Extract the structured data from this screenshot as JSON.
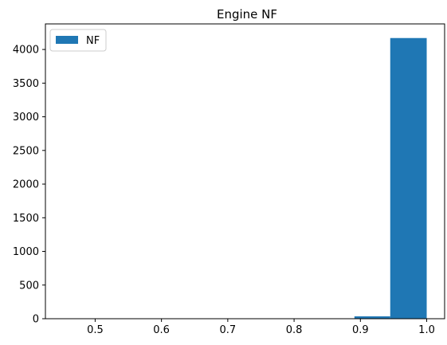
{
  "chart_data": {
    "type": "histogram",
    "title": "Engine NF",
    "xlabel": "",
    "ylabel": "",
    "xlim": [
      0.425,
      1.027
    ],
    "ylim": [
      0,
      4380
    ],
    "xticks": [
      0.5,
      0.6,
      0.7,
      0.8,
      0.9,
      1.0
    ],
    "xtick_labels": [
      "0.5",
      "0.6",
      "0.7",
      "0.8",
      "0.9",
      "1.0"
    ],
    "yticks": [
      0,
      500,
      1000,
      1500,
      2000,
      2500,
      3000,
      3500,
      4000
    ],
    "ytick_labels": [
      "0",
      "500",
      "1000",
      "1500",
      "2000",
      "2500",
      "3000",
      "3500",
      "4000"
    ],
    "grid": false,
    "legend": {
      "position": "upper-left",
      "entries": [
        "NF"
      ]
    },
    "color": "#1f77b4",
    "series": [
      {
        "name": "NF",
        "bins": [
          {
            "x0": 0.453,
            "x1": 0.508,
            "count": 1
          },
          {
            "x0": 0.508,
            "x1": 0.563,
            "count": 0
          },
          {
            "x0": 0.563,
            "x1": 0.617,
            "count": 0
          },
          {
            "x0": 0.617,
            "x1": 0.672,
            "count": 0
          },
          {
            "x0": 0.672,
            "x1": 0.727,
            "count": 0
          },
          {
            "x0": 0.727,
            "x1": 0.781,
            "count": 0
          },
          {
            "x0": 0.781,
            "x1": 0.836,
            "count": 0
          },
          {
            "x0": 0.836,
            "x1": 0.891,
            "count": 0
          },
          {
            "x0": 0.891,
            "x1": 0.945,
            "count": 35
          },
          {
            "x0": 0.945,
            "x1": 1.0,
            "count": 4170
          }
        ]
      }
    ]
  }
}
